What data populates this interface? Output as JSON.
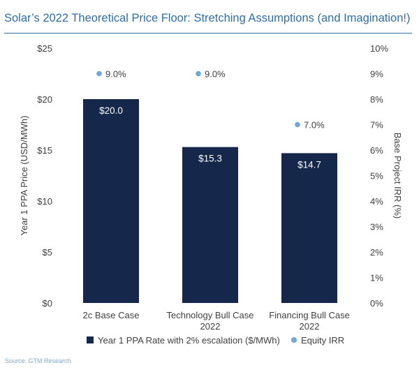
{
  "title": "Solar’s 2022 Theoretical Price Floor: Stretching Assumptions (and Imagination!)",
  "source": "Source: GTM Research",
  "colors": {
    "title": "#2f6fa6",
    "bar": "#15284b",
    "dot": "#6fa7d8",
    "axis_text": "#404040",
    "bar_label": "#ffffff"
  },
  "chart_data": {
    "type": "bar",
    "categories": [
      [
        "2c Base Case"
      ],
      [
        "Technology Bull Case",
        "2022"
      ],
      [
        "Financing Bull Case",
        "2022"
      ]
    ],
    "series": [
      {
        "name": "Year 1 PPA Rate with 2% escalation ($/MWh)",
        "type": "bar",
        "axis": "left",
        "values": [
          20.0,
          15.3,
          14.7
        ],
        "labels": [
          "$20.0",
          "$15.3",
          "$14.7"
        ]
      },
      {
        "name": "Equity IRR",
        "type": "scatter",
        "axis": "right",
        "values": [
          9.0,
          9.0,
          7.0
        ],
        "labels": [
          "9.0%",
          "9.0%",
          "7.0%"
        ]
      }
    ],
    "ylabel": "Year 1 PPA Price (USD/MWh)",
    "y2label": "Base Project IRR (%)",
    "ylim": [
      0,
      25
    ],
    "y2lim": [
      0,
      10
    ],
    "yticks": [
      "$0",
      "$5",
      "$10",
      "$15",
      "$20",
      "$25"
    ],
    "y2ticks": [
      "0%",
      "1%",
      "2%",
      "3%",
      "4%",
      "5%",
      "6%",
      "7%",
      "8%",
      "9%",
      "10%"
    ],
    "grid": false,
    "legend_position": "bottom"
  }
}
